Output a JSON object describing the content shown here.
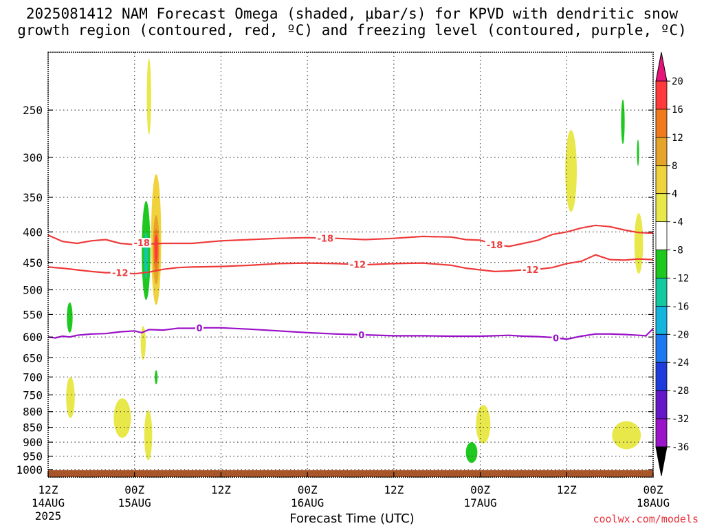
{
  "chart_data": {
    "type": "heatmap",
    "title_line1": "2025081412 NAM Forecast Omega (shaded, μbar/s) for KPVD with dendritic snow",
    "title_line2": "growth region (contoured, red, ºC) and freezing level (contoured, purple, ºC)",
    "xlabel": "Forecast Time (UTC)",
    "credit": "coolwx.com/models",
    "x_range_hours": [
      0,
      84
    ],
    "x_ticks": [
      {
        "hour": 0,
        "time": "12Z",
        "date": "14AUG",
        "year": "2025"
      },
      {
        "hour": 12,
        "time": "00Z",
        "date": "15AUG",
        "year": ""
      },
      {
        "hour": 24,
        "time": "12Z",
        "date": "",
        "year": ""
      },
      {
        "hour": 36,
        "time": "00Z",
        "date": "16AUG",
        "year": ""
      },
      {
        "hour": 48,
        "time": "12Z",
        "date": "",
        "year": ""
      },
      {
        "hour": 60,
        "time": "00Z",
        "date": "17AUG",
        "year": ""
      },
      {
        "hour": 72,
        "time": "12Z",
        "date": "",
        "year": ""
      },
      {
        "hour": 84,
        "time": "00Z",
        "date": "18AUG",
        "year": ""
      }
    ],
    "y_scale": "log-pressure",
    "y_range_hpa": [
      1030,
      200
    ],
    "y_ticks": [
      "250",
      "300",
      "350",
      "400",
      "450",
      "500",
      "550",
      "600",
      "650",
      "700",
      "750",
      "800",
      "850",
      "900",
      "950",
      "1000"
    ],
    "colorbar_labels": [
      "20",
      "16",
      "12",
      "8",
      "4",
      "-4",
      "-8",
      "-12",
      "-16",
      "-20",
      "-24",
      "-28",
      "-32",
      "-36"
    ],
    "colorbar_colors": [
      "#ff3a3a",
      "#f07a1e",
      "#e6a52a",
      "#f0d23c",
      "#e8e84a",
      "#ffffff",
      "#1ec81e",
      "#14c8a0",
      "#14b4dc",
      "#1e78f0",
      "#1e3cdc",
      "#6418c8",
      "#9a14c8",
      "#aaaaaa"
    ],
    "colorbar_top_color": "#e6147a",
    "colorbar_bottom_color": "#000000",
    "ground_color": "#a9552a",
    "contours": [
      {
        "label": "-18",
        "color": "#ee3a3a",
        "hours": [
          0,
          2,
          4,
          6,
          8,
          10,
          12,
          13,
          14,
          16,
          20,
          24,
          28,
          32,
          36,
          40,
          44,
          48,
          52,
          56,
          58,
          60,
          62,
          64,
          66,
          68,
          70,
          72,
          74,
          76,
          78,
          80,
          82,
          84
        ],
        "p": [
          405,
          415,
          418,
          414,
          412,
          418,
          420,
          417,
          419,
          418,
          418,
          414,
          412,
          410,
          409,
          410,
          412,
          410,
          407,
          408,
          412,
          413,
          420,
          423,
          418,
          413,
          404,
          400,
          394,
          390,
          392,
          397,
          401,
          402
        ],
        "label_hours": [
          13,
          38.5,
          62
        ]
      },
      {
        "label": "-12",
        "color": "#ee3a3a",
        "hours": [
          0,
          2,
          4,
          6,
          8,
          10,
          12,
          14,
          16,
          18,
          20,
          24,
          28,
          32,
          36,
          40,
          44,
          48,
          52,
          56,
          58,
          60,
          62,
          64,
          66,
          68,
          70,
          72,
          74,
          76,
          78,
          80,
          82,
          84
        ],
        "p": [
          458,
          460,
          463,
          466,
          468,
          468,
          470,
          467,
          462,
          459,
          458,
          457,
          455,
          452,
          451,
          452,
          454,
          452,
          451,
          455,
          460,
          463,
          466,
          465,
          463,
          462,
          459,
          452,
          448,
          437,
          445,
          446,
          444,
          445
        ],
        "label_hours": [
          10,
          43,
          67
        ]
      },
      {
        "label": "0",
        "color": "#9a10c8",
        "hours": [
          0,
          1,
          2,
          3,
          4,
          6,
          8,
          10,
          12,
          13,
          14,
          16,
          18,
          20,
          22,
          24,
          28,
          32,
          36,
          40,
          44,
          48,
          52,
          56,
          60,
          64,
          66,
          68,
          70,
          72,
          74,
          76,
          78,
          80,
          82,
          83,
          84
        ],
        "p": [
          600,
          602,
          598,
          600,
          596,
          593,
          592,
          588,
          586,
          590,
          583,
          584,
          580,
          580,
          579,
          579,
          582,
          586,
          590,
          593,
          595,
          597,
          597,
          598,
          598,
          596,
          598,
          599,
          601,
          605,
          598,
          593,
          593,
          594,
          596,
          597,
          581
        ],
        "label_hours": [
          21,
          43.5,
          70.5
        ]
      }
    ],
    "shaded_cells": [
      {
        "value": 8,
        "center_hour": 15,
        "center_p": 420,
        "half_hours": 0.7,
        "p_top": 320,
        "p_bottom": 530
      },
      {
        "value": 12,
        "center_hour": 15,
        "center_p": 420,
        "half_hours": 0.45,
        "p_top": 375,
        "p_bottom": 490
      },
      {
        "value": 16,
        "center_hour": 15,
        "center_p": 425,
        "half_hours": 0.35,
        "p_top": 395,
        "p_bottom": 465
      },
      {
        "value": 20,
        "center_hour": 15,
        "center_p": 425,
        "half_hours": 0.22,
        "p_top": 405,
        "p_bottom": 450
      },
      {
        "value": -8,
        "center_hour": 13.6,
        "center_p": 430,
        "half_hours": 0.6,
        "p_top": 355,
        "p_bottom": 520
      },
      {
        "value": -12,
        "center_hour": 13.6,
        "center_p": 440,
        "half_hours": 0.3,
        "p_top": 400,
        "p_bottom": 480
      },
      {
        "value": 4,
        "center_hour": 14.0,
        "center_p": 230,
        "half_hours": 0.3,
        "p_top": 205,
        "p_bottom": 275
      },
      {
        "value": 4,
        "center_hour": 3.1,
        "center_p": 752,
        "half_hours": 0.6,
        "p_top": 700,
        "p_bottom": 820
      },
      {
        "value": -8,
        "center_hour": 3.0,
        "center_p": 555,
        "half_hours": 0.4,
        "p_top": 525,
        "p_bottom": 590
      },
      {
        "value": 4,
        "center_hour": 13.2,
        "center_p": 615,
        "half_hours": 0.35,
        "p_top": 575,
        "p_bottom": 655
      },
      {
        "value": -8,
        "center_hour": 15.0,
        "center_p": 700,
        "half_hours": 0.2,
        "p_top": 682,
        "p_bottom": 720
      },
      {
        "value": 4,
        "center_hour": 10.3,
        "center_p": 820,
        "half_hours": 1.2,
        "p_top": 760,
        "p_bottom": 885
      },
      {
        "value": 4,
        "center_hour": 13.9,
        "center_p": 875,
        "half_hours": 0.55,
        "p_top": 795,
        "p_bottom": 965
      },
      {
        "value": 4,
        "center_hour": 60.4,
        "center_p": 840,
        "half_hours": 1.0,
        "p_top": 780,
        "p_bottom": 905
      },
      {
        "value": -8,
        "center_hour": 58.8,
        "center_p": 930,
        "half_hours": 0.8,
        "p_top": 900,
        "p_bottom": 975
      },
      {
        "value": 4,
        "center_hour": 72.6,
        "center_p": 315,
        "half_hours": 0.8,
        "p_top": 270,
        "p_bottom": 370
      },
      {
        "value": -8,
        "center_hour": 79.8,
        "center_p": 262,
        "half_hours": 0.25,
        "p_top": 240,
        "p_bottom": 285
      },
      {
        "value": -8,
        "center_hour": 81.9,
        "center_p": 295,
        "half_hours": 0.15,
        "p_top": 280,
        "p_bottom": 310
      },
      {
        "value": 4,
        "center_hour": 82.0,
        "center_p": 418,
        "half_hours": 0.6,
        "p_top": 372,
        "p_bottom": 470
      },
      {
        "value": 4,
        "center_hour": 80.3,
        "center_p": 880,
        "half_hours": 2.0,
        "p_top": 830,
        "p_bottom": 925
      }
    ]
  }
}
